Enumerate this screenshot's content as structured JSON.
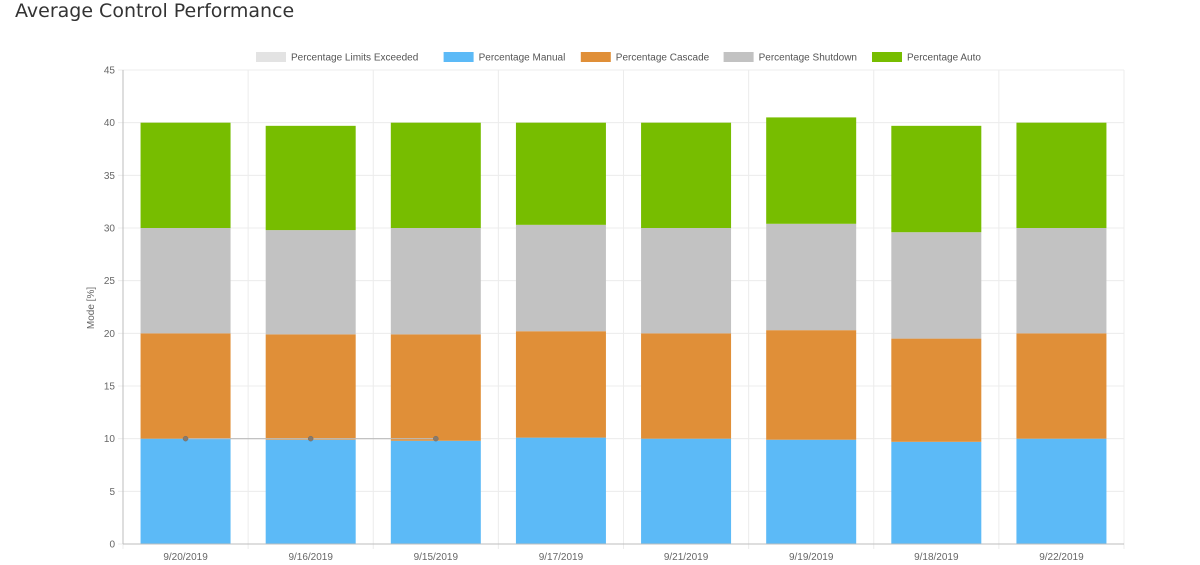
{
  "page": {
    "title": "Average Control Performance"
  },
  "chart_data": {
    "type": "bar",
    "stacked": true,
    "title": "",
    "xlabel": "",
    "ylabel": "Mode [%]",
    "ylim": [
      0,
      45
    ],
    "yticks": [
      0,
      5,
      10,
      15,
      20,
      25,
      30,
      35,
      40,
      45
    ],
    "grid": true,
    "legend_position": "top",
    "categories": [
      "9/20/2019",
      "9/16/2019",
      "9/15/2019",
      "9/17/2019",
      "9/21/2019",
      "9/19/2019",
      "9/18/2019",
      "9/22/2019"
    ],
    "series": [
      {
        "name": "Percentage Limits Exceeded",
        "color": "#e3e3e3",
        "type": "line",
        "values": [
          10,
          10,
          10,
          null,
          null,
          null,
          null,
          null
        ]
      },
      {
        "name": "Percentage Manual",
        "color": "#5cbaf7",
        "values": [
          10.0,
          9.9,
          9.8,
          10.1,
          10.0,
          9.9,
          9.7,
          10.0
        ]
      },
      {
        "name": "Percentage Cascade",
        "color": "#e08f38",
        "values": [
          10.0,
          10.0,
          10.1,
          10.1,
          10.0,
          10.4,
          9.8,
          10.0
        ]
      },
      {
        "name": "Percentage Shutdown",
        "color": "#c2c2c2",
        "values": [
          10.0,
          9.9,
          10.1,
          10.1,
          10.0,
          10.1,
          10.1,
          10.0
        ]
      },
      {
        "name": "Percentage Auto",
        "color": "#77bd00",
        "values": [
          10.0,
          9.9,
          10.0,
          9.7,
          10.0,
          10.1,
          10.1,
          10.0
        ]
      }
    ]
  }
}
